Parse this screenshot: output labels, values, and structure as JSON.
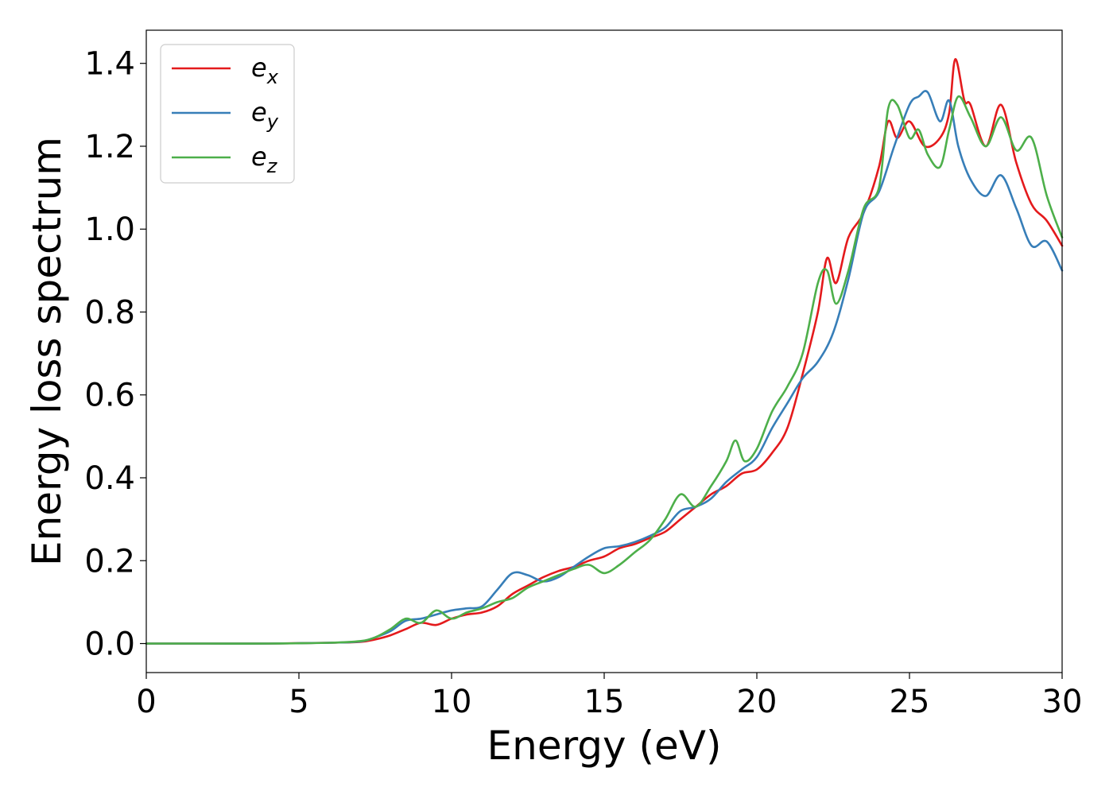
{
  "chart_data": {
    "type": "line",
    "title": "",
    "xlabel": "Energy (eV)",
    "ylabel": "Energy loss spectrum",
    "xlim": [
      0,
      30
    ],
    "ylim": [
      -0.07,
      1.48
    ],
    "xticks": [
      0,
      5,
      10,
      15,
      20,
      25,
      30
    ],
    "xtick_labels": [
      "0",
      "5",
      "10",
      "15",
      "20",
      "25",
      "30"
    ],
    "yticks": [
      0.0,
      0.2,
      0.4,
      0.6,
      0.8,
      1.0,
      1.2,
      1.4
    ],
    "ytick_labels": [
      "0.0",
      "0.2",
      "0.4",
      "0.6",
      "0.8",
      "1.0",
      "1.2",
      "1.4"
    ],
    "grid": false,
    "legend_position": "top-left",
    "series": [
      {
        "name": "e",
        "subscript": "x",
        "color": "#e41a1c",
        "x": [
          0,
          2,
          4,
          6,
          7,
          7.5,
          8,
          8.5,
          9,
          9.5,
          10,
          10.5,
          11,
          11.5,
          12,
          12.5,
          13,
          13.5,
          14,
          14.5,
          15,
          15.5,
          16,
          16.5,
          17,
          17.5,
          18,
          18.5,
          19,
          19.5,
          20,
          20.5,
          21,
          21.5,
          22,
          22.3,
          22.6,
          23,
          23.5,
          24,
          24.3,
          24.6,
          25,
          25.5,
          26,
          26.3,
          26.5,
          26.8,
          27,
          27.5,
          28,
          28.5,
          29,
          29.5,
          30
        ],
        "y": [
          0.0,
          0.0,
          0.0,
          0.002,
          0.004,
          0.01,
          0.02,
          0.035,
          0.05,
          0.045,
          0.06,
          0.07,
          0.075,
          0.09,
          0.12,
          0.14,
          0.16,
          0.175,
          0.185,
          0.2,
          0.21,
          0.23,
          0.24,
          0.255,
          0.27,
          0.3,
          0.33,
          0.36,
          0.38,
          0.41,
          0.42,
          0.46,
          0.52,
          0.65,
          0.8,
          0.93,
          0.87,
          0.98,
          1.04,
          1.15,
          1.26,
          1.22,
          1.26,
          1.2,
          1.22,
          1.28,
          1.41,
          1.31,
          1.3,
          1.2,
          1.3,
          1.16,
          1.06,
          1.02,
          0.96
        ]
      },
      {
        "name": "e",
        "subscript": "y",
        "color": "#377eb8",
        "x": [
          0,
          2,
          4,
          6,
          7,
          7.5,
          8,
          8.5,
          9,
          9.5,
          10,
          10.5,
          11,
          11.5,
          12,
          12.5,
          13,
          13.5,
          14,
          14.5,
          15,
          15.5,
          16,
          16.5,
          17,
          17.5,
          18,
          18.5,
          19,
          19.5,
          20,
          20.5,
          21,
          21.5,
          22,
          22.5,
          23,
          23.5,
          24,
          24.5,
          25,
          25.3,
          25.6,
          26,
          26.3,
          26.6,
          27,
          27.5,
          28,
          28.5,
          29,
          29.5,
          30
        ],
        "y": [
          0.0,
          0.0,
          0.0,
          0.002,
          0.005,
          0.015,
          0.03,
          0.055,
          0.06,
          0.07,
          0.08,
          0.085,
          0.09,
          0.13,
          0.17,
          0.165,
          0.15,
          0.16,
          0.185,
          0.21,
          0.23,
          0.235,
          0.245,
          0.26,
          0.28,
          0.32,
          0.33,
          0.35,
          0.39,
          0.42,
          0.45,
          0.52,
          0.58,
          0.64,
          0.68,
          0.75,
          0.88,
          1.04,
          1.09,
          1.2,
          1.3,
          1.32,
          1.33,
          1.26,
          1.31,
          1.2,
          1.12,
          1.08,
          1.13,
          1.05,
          0.96,
          0.97,
          0.9
        ]
      },
      {
        "name": "e",
        "subscript": "z",
        "color": "#4daf4a",
        "x": [
          0,
          2,
          4,
          6,
          7,
          7.5,
          8,
          8.5,
          9,
          9.5,
          10,
          10.5,
          11,
          11.5,
          12,
          12.5,
          13,
          13.5,
          14,
          14.5,
          15,
          15.5,
          16,
          16.5,
          17,
          17.5,
          18,
          18.5,
          19,
          19.3,
          19.6,
          20,
          20.5,
          21,
          21.5,
          22,
          22.3,
          22.6,
          23,
          23.5,
          24,
          24.3,
          24.6,
          25,
          25.3,
          25.6,
          26,
          26.3,
          26.6,
          27,
          27.5,
          28,
          28.5,
          29,
          29.5,
          30
        ],
        "y": [
          0.0,
          0.0,
          0.0,
          0.002,
          0.006,
          0.015,
          0.035,
          0.06,
          0.05,
          0.08,
          0.06,
          0.075,
          0.085,
          0.1,
          0.11,
          0.135,
          0.15,
          0.165,
          0.18,
          0.19,
          0.17,
          0.19,
          0.22,
          0.25,
          0.3,
          0.36,
          0.33,
          0.38,
          0.44,
          0.49,
          0.44,
          0.47,
          0.56,
          0.62,
          0.7,
          0.87,
          0.9,
          0.82,
          0.9,
          1.05,
          1.1,
          1.29,
          1.3,
          1.22,
          1.24,
          1.18,
          1.15,
          1.24,
          1.32,
          1.27,
          1.2,
          1.27,
          1.19,
          1.22,
          1.08,
          0.98
        ]
      }
    ]
  }
}
